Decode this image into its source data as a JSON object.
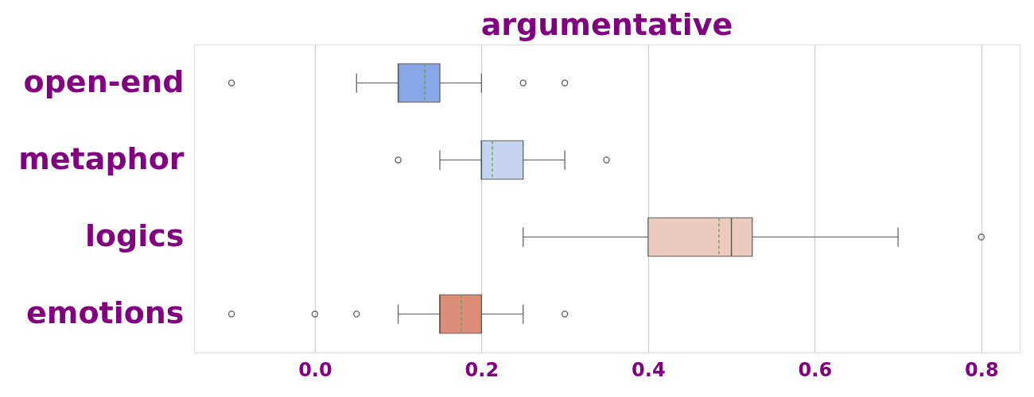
{
  "chart_data": {
    "type": "box",
    "orientation": "horizontal",
    "title": "argumentative",
    "categories": [
      "open-end",
      "metaphor",
      "logics",
      "emotions"
    ],
    "colors": [
      "#88a5e8",
      "#c5d5ef",
      "#eacbbd",
      "#dc8c77"
    ],
    "boxes": [
      {
        "low": 0.05,
        "q1": 0.1,
        "median": 0.1,
        "q3": 0.15,
        "high": 0.2,
        "mean": 0.132,
        "outliers": [
          -0.1,
          0.25,
          0.3
        ]
      },
      {
        "low": 0.15,
        "q1": 0.2,
        "median": 0.2,
        "q3": 0.25,
        "high": 0.3,
        "mean": 0.213,
        "outliers": [
          0.1,
          0.35
        ]
      },
      {
        "low": 0.25,
        "q1": 0.4,
        "median": 0.5,
        "q3": 0.525,
        "high": 0.7,
        "mean": 0.485,
        "outliers": [
          0.8
        ]
      },
      {
        "low": 0.1,
        "q1": 0.15,
        "median": 0.15,
        "q3": 0.2,
        "high": 0.25,
        "mean": 0.176,
        "outliers": [
          -0.1,
          0.0,
          0.05,
          0.3
        ]
      }
    ],
    "xlim": [
      -0.145,
      0.846
    ],
    "xticks": [
      {
        "value": 0,
        "label": "0.0"
      },
      0.2,
      0.4,
      0.6,
      0.8
    ],
    "grid": "x"
  }
}
